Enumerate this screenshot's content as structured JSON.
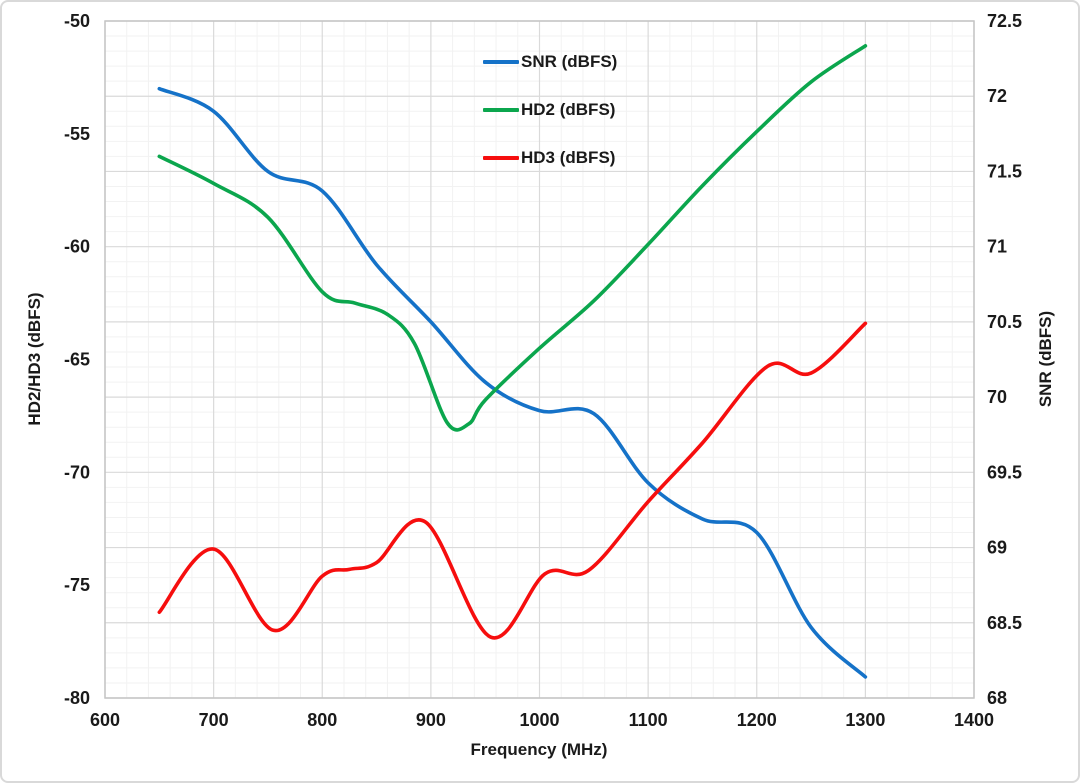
{
  "chart_data": {
    "type": "line",
    "title": "",
    "xlabel": "Frequency (MHz)",
    "ylabel_left": "HD2/HD3 (dBFS)",
    "ylabel_right": "SNR (dBFS)",
    "x_range": [
      600,
      1400
    ],
    "x_ticks": [
      600,
      700,
      800,
      900,
      1000,
      1100,
      1200,
      1300,
      1400
    ],
    "x_minor_step": 20,
    "y_left_range": [
      -80,
      -50
    ],
    "y_left_ticks": [
      -50,
      -55,
      -60,
      -65,
      -70,
      -75,
      -80
    ],
    "y_right_range": [
      68,
      72.5
    ],
    "y_right_ticks": [
      72.5,
      72,
      71.5,
      71,
      70.5,
      70,
      69.5,
      69,
      68.5,
      68
    ],
    "y_right_minor_step": 0.1,
    "grid": true,
    "legend_position": "inside-top-center",
    "grid_minor_color": "#f2f2f2",
    "grid_major_color": "#dadada",
    "plot_border_color": "#c4c4c4",
    "text_color": "#1a1a1a",
    "series": [
      {
        "name": "SNR (dBFS)",
        "axis": "right",
        "color": "#1572c8",
        "points": [
          [
            650,
            72.05
          ],
          [
            700,
            71.9
          ],
          [
            750,
            71.5
          ],
          [
            800,
            71.37
          ],
          [
            850,
            70.88
          ],
          [
            900,
            70.5
          ],
          [
            950,
            70.1
          ],
          [
            1000,
            69.91
          ],
          [
            1050,
            69.89
          ],
          [
            1100,
            69.43
          ],
          [
            1150,
            69.19
          ],
          [
            1200,
            69.1
          ],
          [
            1250,
            68.47
          ],
          [
            1300,
            68.14
          ]
        ]
      },
      {
        "name": "HD2 (dBFS)",
        "axis": "left",
        "color": "#0ba64d",
        "points": [
          [
            650,
            -56.0
          ],
          [
            700,
            -57.2
          ],
          [
            750,
            -58.7
          ],
          [
            800,
            -62.0
          ],
          [
            830,
            -62.5
          ],
          [
            860,
            -63.0
          ],
          [
            885,
            -64.3
          ],
          [
            915,
            -67.8
          ],
          [
            935,
            -67.85
          ],
          [
            950,
            -66.8
          ],
          [
            1000,
            -64.5
          ],
          [
            1050,
            -62.4
          ],
          [
            1100,
            -59.9
          ],
          [
            1150,
            -57.3
          ],
          [
            1200,
            -54.9
          ],
          [
            1250,
            -52.7
          ],
          [
            1300,
            -51.1
          ]
        ]
      },
      {
        "name": "HD3 (dBFS)",
        "axis": "left",
        "color": "#f60e0e",
        "points": [
          [
            650,
            -76.2
          ],
          [
            700,
            -73.4
          ],
          [
            755,
            -77.0
          ],
          [
            800,
            -74.6
          ],
          [
            825,
            -74.3
          ],
          [
            850,
            -74.0
          ],
          [
            895,
            -72.2
          ],
          [
            955,
            -77.3
          ],
          [
            1005,
            -74.5
          ],
          [
            1045,
            -74.35
          ],
          [
            1100,
            -71.3
          ],
          [
            1150,
            -68.7
          ],
          [
            1210,
            -65.3
          ],
          [
            1250,
            -65.6
          ],
          [
            1300,
            -63.4
          ]
        ]
      }
    ]
  }
}
